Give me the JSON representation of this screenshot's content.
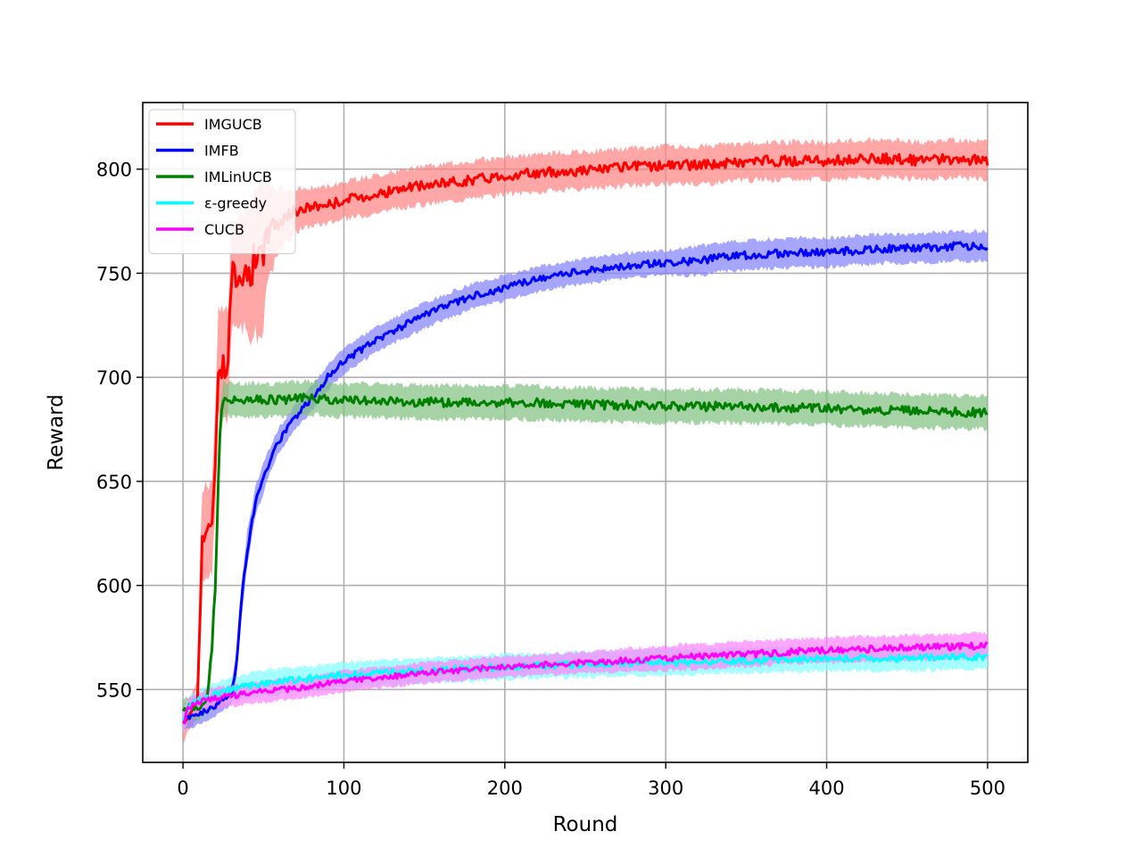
{
  "chart_data": {
    "type": "line",
    "title": "",
    "xlabel": "Round",
    "ylabel": "Reward",
    "xlim": [
      -25,
      525
    ],
    "ylim": [
      515,
      832
    ],
    "x_ticks": [
      0,
      100,
      200,
      300,
      400,
      500
    ],
    "y_ticks": [
      550,
      600,
      650,
      700,
      750,
      800
    ],
    "grid": true,
    "legend_position": "top-left",
    "band_note": "shaded bands show variability around each series",
    "series": [
      {
        "name": "IMGUCB",
        "color": "#ff0000",
        "band_color": "#ff8080",
        "x": [
          0,
          5,
          9,
          10,
          12,
          15,
          18,
          20,
          22,
          25,
          28,
          30,
          35,
          40,
          45,
          50,
          52,
          55,
          60,
          65,
          70,
          80,
          90,
          100,
          120,
          140,
          160,
          180,
          200,
          220,
          240,
          260,
          280,
          300,
          320,
          340,
          360,
          380,
          400,
          420,
          440,
          460,
          480,
          500
        ],
        "values": [
          533,
          540,
          545,
          575,
          622,
          628,
          625,
          660,
          706,
          706,
          705,
          748,
          752,
          750,
          756,
          755,
          770,
          772,
          775,
          778,
          780,
          782,
          783,
          785,
          788,
          791,
          793,
          795,
          797,
          798,
          799,
          800,
          801,
          802,
          802,
          803,
          804,
          804,
          804,
          805,
          805,
          804,
          805,
          804
        ],
        "band": [
          8,
          8,
          10,
          22,
          22,
          22,
          22,
          25,
          25,
          25,
          25,
          25,
          25,
          30,
          35,
          35,
          25,
          20,
          15,
          12,
          10,
          9,
          9,
          9,
          9,
          9,
          9,
          9,
          9,
          9,
          9,
          9,
          9,
          9,
          9,
          9,
          9,
          9,
          9,
          9,
          9,
          9,
          9,
          9
        ]
      },
      {
        "name": "IMFB",
        "color": "#0000ff",
        "band_color": "#8080ff",
        "x": [
          0,
          10,
          20,
          25,
          30,
          33,
          36,
          40,
          45,
          50,
          55,
          60,
          70,
          80,
          90,
          100,
          120,
          140,
          160,
          180,
          200,
          220,
          240,
          260,
          280,
          300,
          320,
          340,
          360,
          380,
          400,
          420,
          440,
          460,
          480,
          500
        ],
        "values": [
          536,
          538,
          542,
          545,
          548,
          560,
          590,
          618,
          640,
          652,
          662,
          670,
          681,
          690,
          700,
          708,
          718,
          726,
          733,
          739,
          743,
          747,
          750,
          752,
          754,
          755,
          756,
          758,
          759,
          760,
          760,
          761,
          762,
          762,
          763,
          763
        ],
        "band": [
          5,
          5,
          5,
          5,
          5,
          6,
          8,
          8,
          7,
          7,
          6,
          6,
          6,
          6,
          6,
          6,
          6,
          6,
          6,
          6,
          6,
          6,
          6,
          6,
          6,
          6,
          7,
          7,
          7,
          7,
          7,
          7,
          7,
          7,
          7,
          7
        ]
      },
      {
        "name": "IMLinUCB",
        "color": "#008000",
        "band_color": "#80c080",
        "x": [
          0,
          5,
          10,
          15,
          18,
          20,
          22,
          23,
          25,
          28,
          30,
          40,
          50,
          60,
          70,
          80,
          100,
          150,
          200,
          250,
          300,
          350,
          400,
          450,
          500
        ],
        "values": [
          540,
          542,
          540,
          545,
          570,
          600,
          650,
          675,
          690,
          690,
          689,
          689,
          689,
          689,
          690,
          690,
          689,
          688,
          688,
          687,
          686,
          686,
          685,
          684,
          683
        ],
        "band": [
          5,
          5,
          5,
          6,
          8,
          10,
          10,
          10,
          8,
          8,
          8,
          8,
          8,
          8,
          8,
          8,
          8,
          8,
          8,
          8,
          8,
          8,
          8,
          8,
          8
        ]
      },
      {
        "name": "ε-greedy",
        "color": "#00ffff",
        "band_color": "#80ffff",
        "x": [
          0,
          5,
          10,
          20,
          30,
          50,
          75,
          100,
          150,
          200,
          250,
          300,
          350,
          400,
          450,
          500
        ],
        "values": [
          535,
          543,
          545,
          548,
          550,
          553,
          555,
          557,
          559,
          561,
          562,
          563,
          564,
          565,
          565,
          566
        ],
        "band": [
          5,
          5,
          5,
          5,
          6,
          6,
          6,
          6,
          6,
          6,
          6,
          6,
          6,
          6,
          6,
          6
        ]
      },
      {
        "name": "CUCB",
        "color": "#ff00ff",
        "band_color": "#ff80ff",
        "x": [
          0,
          3,
          5,
          10,
          20,
          30,
          50,
          75,
          100,
          150,
          200,
          250,
          300,
          350,
          400,
          450,
          500
        ],
        "values": [
          533,
          540,
          542,
          544,
          546,
          547,
          549,
          551,
          554,
          558,
          561,
          563,
          565,
          567,
          569,
          570,
          571
        ],
        "band": [
          5,
          5,
          5,
          5,
          5,
          5,
          5,
          5,
          5,
          5,
          5,
          5,
          6,
          6,
          6,
          6,
          6
        ]
      }
    ]
  }
}
